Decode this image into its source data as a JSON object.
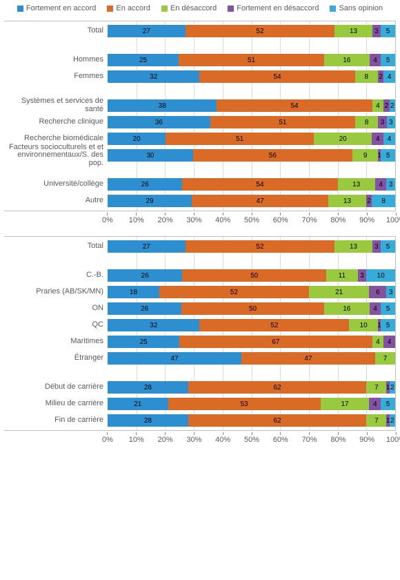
{
  "legend": [
    {
      "label": "Fortement en accord",
      "color": "#2e8fd0"
    },
    {
      "label": "En accord",
      "color": "#d96b26"
    },
    {
      "label": "En désaccord",
      "color": "#99c93f"
    },
    {
      "label": "Fortement en désaccord",
      "color": "#8352a1"
    },
    {
      "label": "Sans opinion",
      "color": "#38acd8"
    }
  ],
  "axis": {
    "ticks": [
      "0%",
      "10%",
      "20%",
      "30%",
      "40%",
      "50%",
      "60%",
      "70%",
      "80%",
      "90%",
      "100%"
    ]
  },
  "colors": {
    "grid": "#d9d9d9"
  },
  "chart1": {
    "groups": [
      [
        {
          "label": "Total",
          "values": [
            27,
            52,
            13,
            3,
            5
          ]
        }
      ],
      [
        {
          "label": "Hommes",
          "values": [
            25,
            51,
            16,
            4,
            5
          ]
        },
        {
          "label": "Femmes",
          "values": [
            32,
            54,
            8,
            2,
            4
          ]
        }
      ],
      [
        {
          "label": "Systèmes et services de santé",
          "values": [
            38,
            54,
            4,
            2,
            2
          ]
        },
        {
          "label": "Recherche clinique",
          "values": [
            36,
            51,
            8,
            3,
            3
          ]
        },
        {
          "label": "Recherche biomédicale",
          "values": [
            20,
            51,
            20,
            4,
            4
          ]
        },
        {
          "label": "Facteurs socioculturels et et environnementaux/S. des pop.",
          "values": [
            30,
            56,
            9,
            1,
            5
          ]
        }
      ],
      [
        {
          "label": "Université/collège",
          "values": [
            26,
            54,
            13,
            4,
            3
          ]
        },
        {
          "label": "Autre",
          "values": [
            29,
            47,
            13,
            2,
            8
          ]
        }
      ]
    ]
  },
  "chart2": {
    "groups": [
      [
        {
          "label": "Total",
          "values": [
            27,
            52,
            13,
            3,
            5
          ]
        }
      ],
      [
        {
          "label": "C.-B.",
          "values": [
            26,
            50,
            11,
            3,
            10
          ]
        },
        {
          "label": "Praries (AB/SK/MN)",
          "values": [
            18,
            52,
            21,
            6,
            3
          ]
        },
        {
          "label": "ON",
          "values": [
            26,
            50,
            16,
            4,
            5
          ]
        },
        {
          "label": "QC",
          "values": [
            32,
            52,
            10,
            1,
            5
          ]
        },
        {
          "label": "Maritimes",
          "values": [
            25,
            67,
            4,
            4,
            0
          ]
        },
        {
          "label": "Étranger",
          "values": [
            47,
            47,
            7,
            0,
            0
          ]
        }
      ],
      [
        {
          "label": "Début de carrière",
          "values": [
            28,
            62,
            7,
            1,
            2
          ]
        },
        {
          "label": "Milieu de carrière",
          "values": [
            21,
            53,
            17,
            4,
            5
          ]
        },
        {
          "label": "Fin de carrière",
          "values": [
            28,
            62,
            7,
            1,
            2
          ]
        }
      ]
    ]
  }
}
